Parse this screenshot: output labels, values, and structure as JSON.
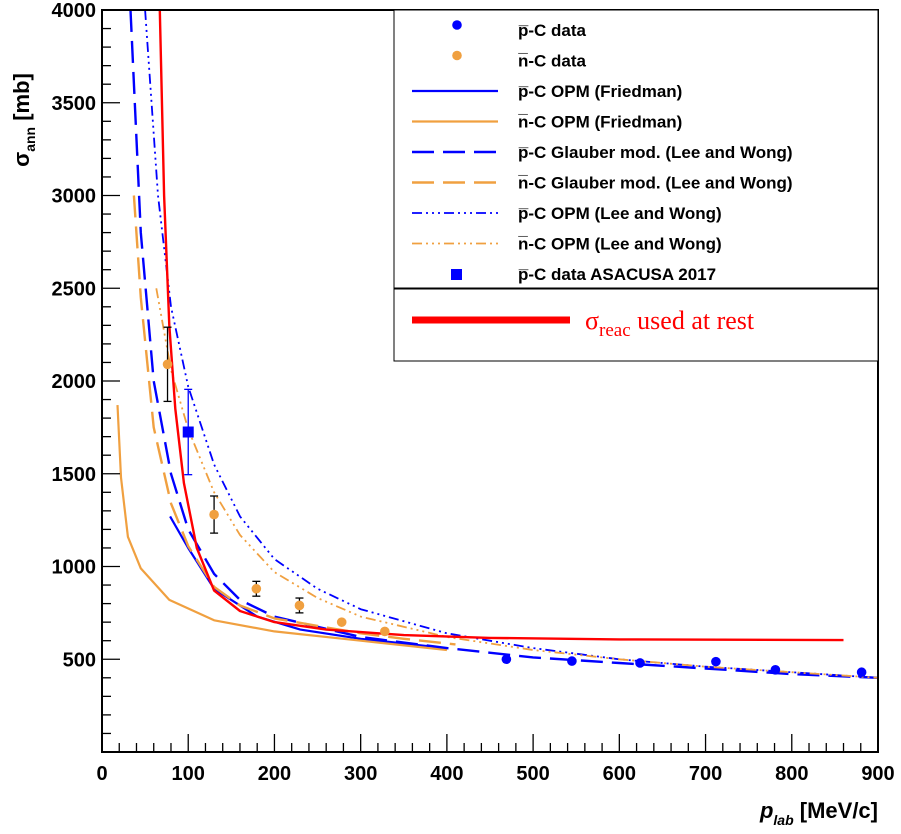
{
  "chart_data": {
    "type": "line",
    "xlabel": {
      "main": "p",
      "sub": "lab",
      "unit": " [MeV/c]"
    },
    "ylabel": {
      "main": "σ",
      "sub": "ann",
      "unit": " [mb]"
    },
    "xlim": [
      0,
      900
    ],
    "ylim": [
      0,
      4000
    ],
    "x_ticks": [
      "0",
      "100",
      "200",
      "300",
      "400",
      "500",
      "600",
      "700",
      "800",
      "900"
    ],
    "y_ticks": [
      "500",
      "1000",
      "1500",
      "2000",
      "2500",
      "3000",
      "3500",
      "4000"
    ],
    "grid": false,
    "legend_position": "top-right",
    "series": [
      {
        "name": "p̅-C data",
        "kind": "points",
        "color": "#0000ff",
        "points": [
          [
            469,
            500
          ],
          [
            545,
            490
          ],
          [
            624,
            480
          ],
          [
            712,
            487
          ],
          [
            781,
            443
          ],
          [
            881,
            430
          ]
        ]
      },
      {
        "name": "n̅-C data",
        "kind": "points",
        "color": "#f0a040",
        "points": [
          [
            76,
            2090,
            200
          ],
          [
            130,
            1280,
            100
          ],
          [
            179,
            880,
            40
          ],
          [
            229,
            790,
            40
          ],
          [
            278,
            700,
            0
          ],
          [
            328,
            650,
            0
          ]
        ]
      },
      {
        "name": "p̅-C OPM (Friedman)",
        "kind": "line",
        "style": "solid",
        "color": "#0000ff",
        "points": [
          [
            79,
            1270
          ],
          [
            100,
            1100
          ],
          [
            130,
            880
          ],
          [
            180,
            730
          ],
          [
            230,
            660
          ],
          [
            300,
            610
          ],
          [
            380,
            570
          ]
        ]
      },
      {
        "name": "n̅-C OPM (Friedman)",
        "kind": "line",
        "style": "solid",
        "color": "#f0a040",
        "points": [
          [
            18,
            1870
          ],
          [
            22,
            1480
          ],
          [
            30,
            1160
          ],
          [
            45,
            990
          ],
          [
            78,
            820
          ],
          [
            130,
            710
          ],
          [
            200,
            650
          ],
          [
            300,
            600
          ],
          [
            400,
            550
          ]
        ]
      },
      {
        "name": "p̅-C Glauber mod. (Lee and Wong)",
        "kind": "line",
        "style": "longdash",
        "color": "#0000ff",
        "points": [
          [
            33,
            4000
          ],
          [
            45,
            2800
          ],
          [
            60,
            2000
          ],
          [
            80,
            1500
          ],
          [
            100,
            1200
          ],
          [
            130,
            960
          ],
          [
            160,
            820
          ],
          [
            200,
            730
          ],
          [
            300,
            620
          ],
          [
            400,
            560
          ],
          [
            500,
            510
          ],
          [
            600,
            480
          ],
          [
            700,
            450
          ],
          [
            800,
            420
          ],
          [
            900,
            400
          ]
        ]
      },
      {
        "name": "n̅-C Glauber mod. (Lee and Wong)",
        "kind": "line",
        "style": "longdash",
        "color": "#f0a040",
        "points": [
          [
            37,
            3000
          ],
          [
            45,
            2450
          ],
          [
            60,
            1750
          ],
          [
            80,
            1340
          ],
          [
            100,
            1110
          ],
          [
            130,
            890
          ],
          [
            160,
            790
          ],
          [
            200,
            720
          ],
          [
            250,
            680
          ],
          [
            300,
            640
          ],
          [
            350,
            610
          ],
          [
            410,
            580
          ]
        ]
      },
      {
        "name": "p̅-C OPM (Lee and Wong)",
        "kind": "line",
        "style": "dashdotdotdot",
        "color": "#0000ff",
        "points": [
          [
            50,
            4000
          ],
          [
            65,
            3000
          ],
          [
            80,
            2400
          ],
          [
            100,
            1970
          ],
          [
            130,
            1550
          ],
          [
            160,
            1270
          ],
          [
            200,
            1040
          ],
          [
            250,
            880
          ],
          [
            300,
            770
          ],
          [
            400,
            640
          ],
          [
            500,
            560
          ],
          [
            600,
            500
          ],
          [
            700,
            460
          ],
          [
            800,
            430
          ],
          [
            900,
            400
          ]
        ]
      },
      {
        "name": "n̅-C OPM (Lee and Wong)",
        "kind": "line",
        "style": "dashdotdotdot",
        "color": "#f0a040",
        "points": [
          [
            63,
            2500
          ],
          [
            80,
            2060
          ],
          [
            100,
            1740
          ],
          [
            130,
            1400
          ],
          [
            160,
            1170
          ],
          [
            200,
            970
          ],
          [
            250,
            830
          ],
          [
            300,
            730
          ],
          [
            400,
            620
          ],
          [
            500,
            550
          ],
          [
            600,
            500
          ],
          [
            700,
            460
          ],
          [
            800,
            430
          ],
          [
            900,
            400
          ]
        ]
      },
      {
        "name": "p̅-C data ASACUSA 2017",
        "kind": "points",
        "square": true,
        "color": "#0000ff",
        "points": [
          [
            100,
            1725,
            230
          ]
        ]
      },
      {
        "name": "σ_reac used at rest",
        "kind": "line",
        "style": "solid",
        "color": "#ff0000",
        "points": [
          [
            67,
            4000
          ],
          [
            72,
            3000
          ],
          [
            78,
            2300
          ],
          [
            85,
            1850
          ],
          [
            95,
            1450
          ],
          [
            110,
            1100
          ],
          [
            130,
            870
          ],
          [
            160,
            760
          ],
          [
            200,
            700
          ],
          [
            260,
            660
          ],
          [
            350,
            630
          ],
          [
            450,
            615
          ],
          [
            600,
            607
          ],
          [
            860,
            603
          ]
        ]
      }
    ]
  },
  "legend": {
    "entries": [
      {
        "label": "p̅-C data",
        "color": "#0000ff",
        "marker": "dot"
      },
      {
        "label": "n̅-C data",
        "color": "#f0a040",
        "marker": "dot"
      },
      {
        "label": "p̅-C OPM (Friedman)",
        "color": "#0000ff",
        "marker": "solid"
      },
      {
        "label": "n̅-C OPM (Friedman)",
        "color": "#f0a040",
        "marker": "solid"
      },
      {
        "label": "p̅-C Glauber mod. (Lee and Wong)",
        "color": "#0000ff",
        "marker": "longdash"
      },
      {
        "label": "n̅-C Glauber mod. (Lee and Wong)",
        "color": "#f0a040",
        "marker": "longdash"
      },
      {
        "label": "p̅-C OPM (Lee and Wong)",
        "color": "#0000ff",
        "marker": "dashdotdotdot"
      },
      {
        "label": "n̅-C OPM (Lee and Wong)",
        "color": "#f0a040",
        "marker": "dashdotdotdot"
      },
      {
        "label": "p̅-C data ASACUSA 2017",
        "color": "#0000ff",
        "marker": "square"
      }
    ],
    "extra": {
      "symbol": "σ",
      "sub": "reac",
      "text": " used at rest",
      "color": "#ff0000"
    }
  }
}
